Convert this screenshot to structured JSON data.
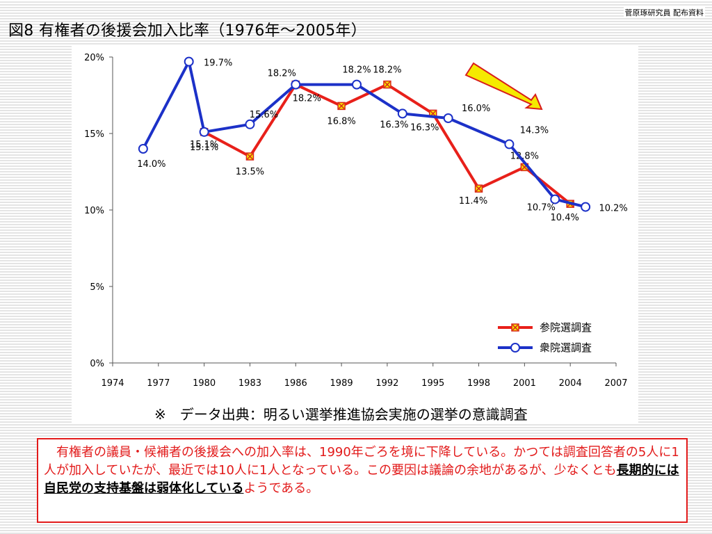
{
  "header": {
    "source_note": "菅原琢研究員 配布資料",
    "title": "図8 有権者の後援会加入比率（1976年～2005年）"
  },
  "chart_data": {
    "type": "line",
    "x_ticks": [
      1974,
      1977,
      1980,
      1983,
      1986,
      1989,
      1992,
      1995,
      1998,
      2001,
      2004,
      2007
    ],
    "y_ticks": [
      "0%",
      "5%",
      "10%",
      "15%",
      "20%"
    ],
    "xlim": [
      1974,
      2007
    ],
    "ylim": [
      0,
      20
    ],
    "series": [
      {
        "name": "参院選調査",
        "color": "#e8201a",
        "marker": "square-x",
        "x": [
          1980,
          1983,
          1986,
          1989,
          1992,
          1995,
          1998,
          2001,
          2004
        ],
        "values": [
          15.1,
          13.5,
          18.2,
          16.8,
          18.2,
          16.3,
          11.4,
          12.8,
          10.4
        ],
        "labels": [
          "15.1%",
          "13.5%",
          "18.2%",
          "16.8%",
          "18.2%",
          "16.3%",
          "11.4%",
          "12.8%",
          "10.4%"
        ]
      },
      {
        "name": "衆院選調査",
        "color": "#1c31c8",
        "marker": "circle",
        "x": [
          1976,
          1979,
          1980,
          1983,
          1986,
          1990,
          1993,
          1996,
          2000,
          2003,
          2005
        ],
        "values": [
          14.0,
          19.7,
          15.1,
          15.6,
          18.2,
          18.2,
          16.3,
          16.0,
          14.3,
          10.7,
          10.2
        ],
        "labels": [
          "14.0%",
          "19.7%",
          "15.1%",
          "15.6%",
          "18.2%",
          "18.2%",
          "16.3%",
          "16.0%",
          "14.3%",
          "10.7%",
          "10.2%"
        ]
      }
    ],
    "legend_position": "bottom-right",
    "annotation": "downward-arrow",
    "arrow_color": "#f5ea00",
    "grid": false
  },
  "data_source": "※　データ出典：明るい選挙推進協会実施の選挙の意識調査",
  "note": {
    "text_before": "　有権者の議員・候補者の後援会への加入率は、1990年ごろを境に下降している。かつては調査回答者の5人に1人が加入していたが、最近では10人に1人となっている。この要因は議論の余地があるが、少なくとも",
    "emphasis": "長期的には自民党の支持基盤は弱体化している",
    "text_after": "ようである。"
  }
}
